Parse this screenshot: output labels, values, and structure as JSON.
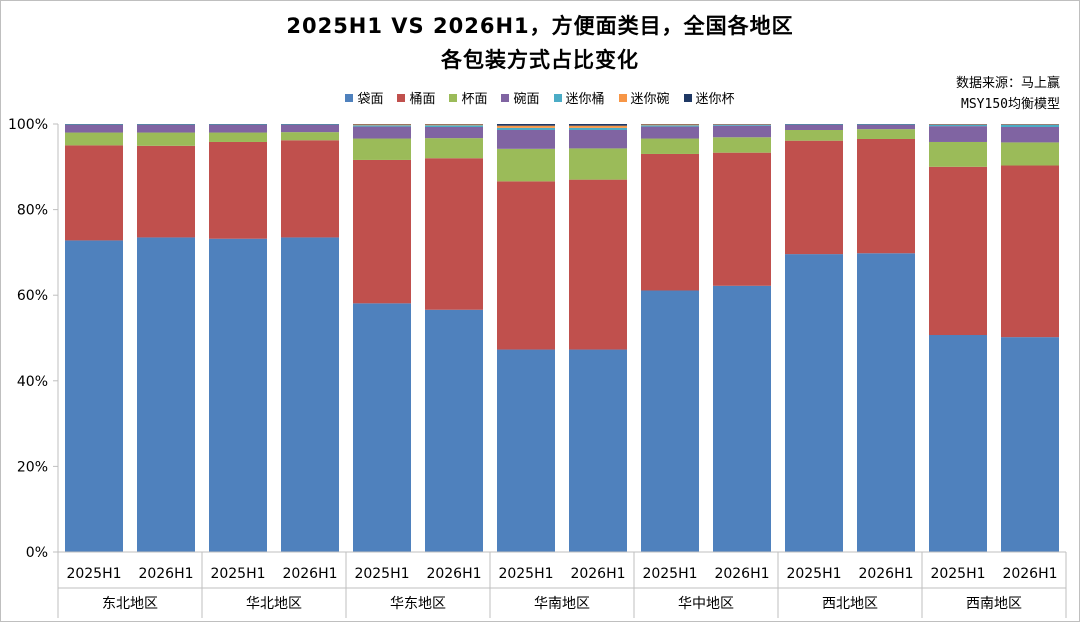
{
  "chart_data": {
    "type": "bar",
    "stacked": true,
    "title_line1": "2025H1 VS 2026H1，方便面类目，全国各地区",
    "title_line2": "各包装方式占比变化",
    "source_line1": "数据来源：马上赢",
    "source_line2": "MSY150均衡模型",
    "ylim": [
      0,
      100
    ],
    "yticks": [
      "0%",
      "20%",
      "40%",
      "60%",
      "80%",
      "100%"
    ],
    "yticks_values": [
      0,
      20,
      40,
      60,
      80,
      100
    ],
    "grid": false,
    "legend_position": "top",
    "regions": [
      "东北地区",
      "华北地区",
      "华东地区",
      "华南地区",
      "华中地区",
      "西北地区",
      "西南地区"
    ],
    "categories": [
      "2025H1",
      "2026H1",
      "2025H1",
      "2026H1",
      "2025H1",
      "2026H1",
      "2025H1",
      "2026H1",
      "2025H1",
      "2026H1",
      "2025H1",
      "2026H1",
      "2025H1",
      "2026H1"
    ],
    "series": [
      {
        "name": "袋面",
        "color": "#4f81bd",
        "values": [
          72.8,
          73.5,
          73.2,
          73.5,
          58.1,
          56.6,
          47.3,
          47.3,
          61.1,
          62.2,
          69.6,
          69.8,
          50.7,
          50.2
        ]
      },
      {
        "name": "桶面",
        "color": "#c0504d",
        "values": [
          22.2,
          21.4,
          22.6,
          22.7,
          33.5,
          35.4,
          39.3,
          39.7,
          31.9,
          31.1,
          26.5,
          26.7,
          39.3,
          40.1
        ]
      },
      {
        "name": "杯面",
        "color": "#9bbb59",
        "values": [
          3.0,
          3.1,
          2.2,
          1.9,
          5.0,
          4.7,
          7.6,
          7.3,
          3.6,
          3.6,
          2.5,
          2.3,
          5.8,
          5.4
        ]
      },
      {
        "name": "碗面",
        "color": "#8064a2",
        "values": [
          1.8,
          1.8,
          1.8,
          1.7,
          2.8,
          2.6,
          4.4,
          4.3,
          2.8,
          2.7,
          1.2,
          1.0,
          3.7,
          3.6
        ]
      },
      {
        "name": "迷你桶",
        "color": "#4bacc6",
        "values": [
          0.1,
          0.1,
          0.1,
          0.1,
          0.3,
          0.4,
          0.5,
          0.5,
          0.3,
          0.2,
          0.1,
          0.1,
          0.3,
          0.5
        ]
      },
      {
        "name": "迷你碗",
        "color": "#f79646",
        "values": [
          0.0,
          0.0,
          0.0,
          0.0,
          0.2,
          0.2,
          0.5,
          0.5,
          0.2,
          0.1,
          0.0,
          0.0,
          0.1,
          0.1
        ]
      },
      {
        "name": "迷你杯",
        "color": "#1f3864",
        "values": [
          0.1,
          0.1,
          0.1,
          0.1,
          0.1,
          0.1,
          0.4,
          0.4,
          0.1,
          0.1,
          0.1,
          0.1,
          0.1,
          0.1
        ]
      }
    ]
  }
}
